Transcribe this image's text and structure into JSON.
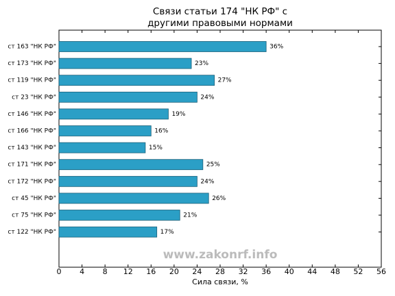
{
  "chart_data": {
    "type": "barh",
    "title": "Связи статьи 174 \"НК РФ\" с\nдругими правовыми нормами",
    "xlabel": "Сила связи, %",
    "annotation": "www.zakonrf.info",
    "categories": [
      "ст 163 \"НК РФ\"",
      "ст 173 \"НК РФ\"",
      "ст 119 \"НК РФ\"",
      "ст 23 \"НК РФ\"",
      "ст 146 \"НК РФ\"",
      "ст 166 \"НК РФ\"",
      "ст 143 \"НК РФ\"",
      "ст 171 \"НК РФ\"",
      "ст 172 \"НК РФ\"",
      "ст 45 \"НК РФ\"",
      "ст 75 \"НК РФ\"",
      "ст 122 \"НК РФ\""
    ],
    "values": [
      36,
      23,
      27,
      24,
      19,
      16,
      15,
      25,
      24,
      26,
      21,
      17
    ],
    "value_labels": [
      "36%",
      "23%",
      "27%",
      "24%",
      "19%",
      "16%",
      "15%",
      "25%",
      "24%",
      "26%",
      "21%",
      "17%"
    ],
    "color": "#2b9fc6",
    "xlim": [
      0,
      56
    ],
    "xticks": [
      0,
      4,
      8,
      12,
      16,
      20,
      24,
      28,
      32,
      36,
      40,
      44,
      48,
      52,
      56
    ],
    "grid": false
  }
}
